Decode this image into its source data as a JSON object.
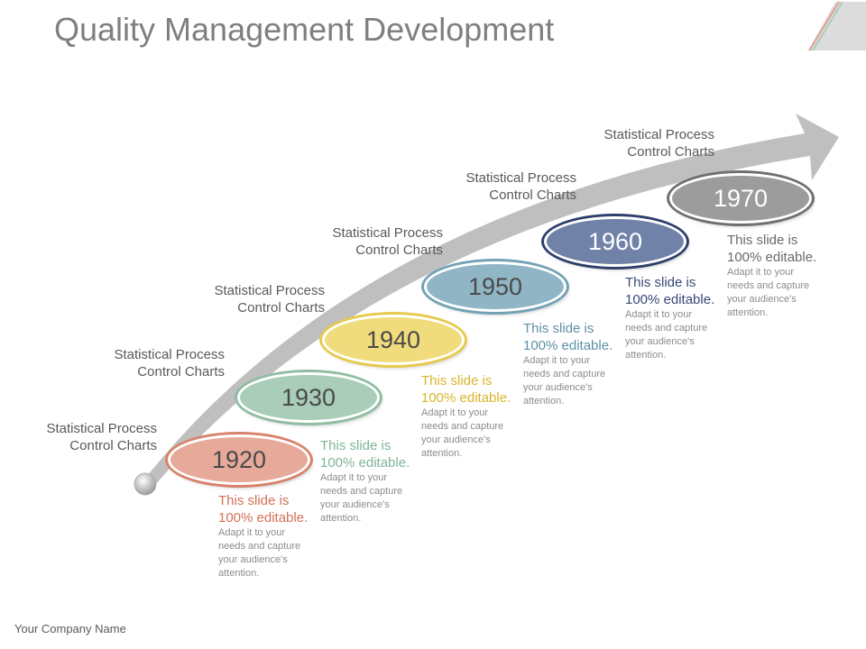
{
  "title": "Quality Management Development",
  "footer": "Your Company Name",
  "milestones": [
    {
      "year": "1920",
      "caption_line1": "Statistical Process",
      "caption_line2": "Control Charts",
      "desc_lead": "This slide is 100% editable.",
      "desc_rest": " Adapt it to your needs and capture your audience's attention.",
      "fill": "#e7aa9a",
      "ring": "#d9826a",
      "text_color": "#d47157"
    },
    {
      "year": "1930",
      "caption_line1": "Statistical Process",
      "caption_line2": "Control Charts",
      "desc_lead": "This slide is 100% editable.",
      "desc_rest": " Adapt it to your needs and capture your audience's attention.",
      "fill": "#a9cdb8",
      "ring": "#8fbda2",
      "text_color": "#7eb596"
    },
    {
      "year": "1940",
      "caption_line1": "Statistical Process",
      "caption_line2": "Control Charts",
      "desc_lead": "This slide is 100% editable.",
      "desc_rest": " Adapt it to your needs and capture your audience's attention.",
      "fill": "#f1dc7d",
      "ring": "#e7c94c",
      "text_color": "#d9b52c"
    },
    {
      "year": "1950",
      "caption_line1": "Statistical Process",
      "caption_line2": "Control Charts",
      "desc_lead": "This slide is 100% editable.",
      "desc_rest": " Adapt it to your needs and capture your audience's attention.",
      "fill": "#90b6c5",
      "ring": "#73a2b4",
      "text_color": "#5e91a6"
    },
    {
      "year": "1960",
      "caption_line1": "Statistical Process",
      "caption_line2": "Control Charts",
      "desc_lead": "This slide is 100% editable.",
      "desc_rest": " Adapt it to your needs and capture your audience's attention.",
      "fill": "#7082a8",
      "ring": "#2e3f6b",
      "text_color": "#3a4a78"
    },
    {
      "year": "1970",
      "caption_line1": "Statistical Process",
      "caption_line2": "Control Charts",
      "desc_lead": "This slide is 100% editable.",
      "desc_rest": " Adapt it to your needs and capture your audience's attention.",
      "fill": "#9c9c9c",
      "ring": "#6f6f6f",
      "text_color": "#6a6a6a"
    }
  ]
}
